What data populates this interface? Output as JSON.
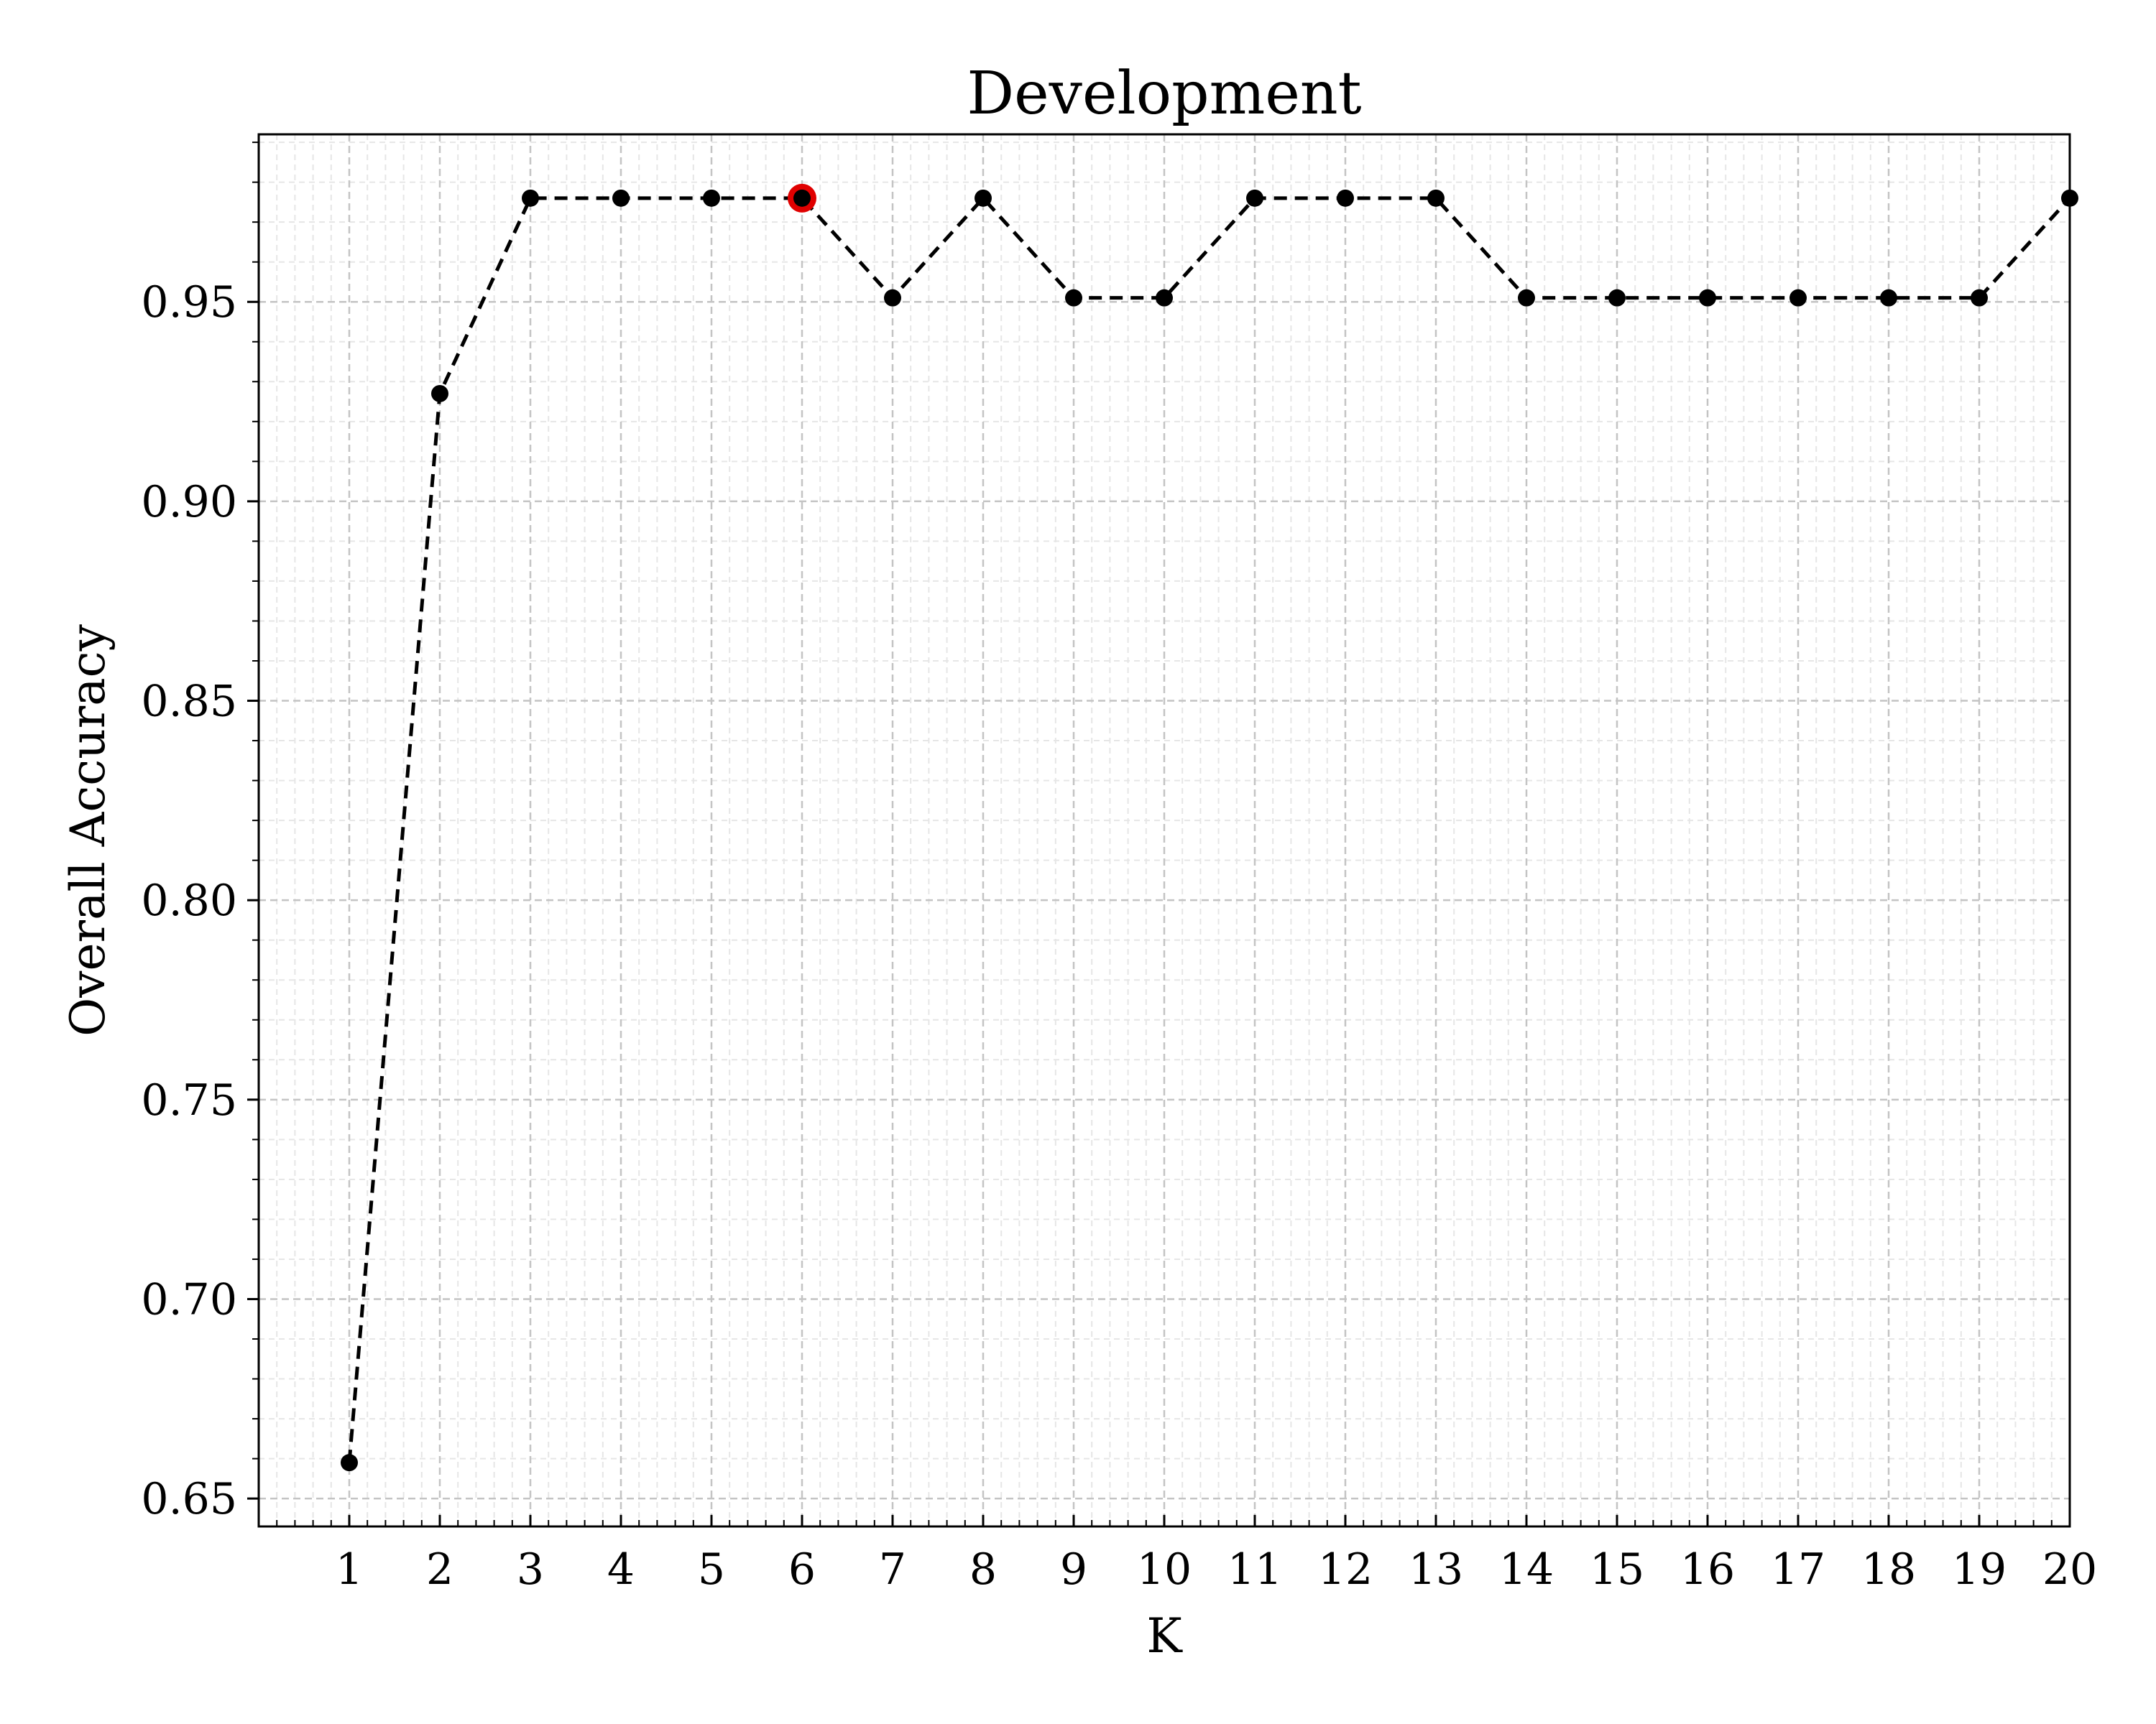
{
  "chart_data": {
    "type": "line",
    "title": "Development",
    "xlabel": "K",
    "ylabel": "Overall Accuracy",
    "x": [
      1,
      2,
      3,
      4,
      5,
      6,
      7,
      8,
      9,
      10,
      11,
      12,
      13,
      14,
      15,
      16,
      17,
      18,
      19,
      20
    ],
    "series": [
      {
        "values": [
          0.659,
          0.927,
          0.976,
          0.976,
          0.976,
          0.976,
          0.951,
          0.976,
          0.951,
          0.951,
          0.976,
          0.976,
          0.976,
          0.951,
          0.951,
          0.951,
          0.951,
          0.951,
          0.951,
          0.976
        ],
        "color": "#000000",
        "line_style": "dashed",
        "marker": "circle"
      }
    ],
    "highlight": {
      "x": 6,
      "y": 0.976,
      "color": "#e00000"
    },
    "xlim": [
      0,
      20
    ],
    "ylim": [
      0.643,
      0.992
    ],
    "x_ticks": [
      "1",
      "2",
      "3",
      "4",
      "5",
      "6",
      "7",
      "8",
      "9",
      "10",
      "11",
      "12",
      "13",
      "14",
      "15",
      "16",
      "17",
      "18",
      "19",
      "20"
    ],
    "y_ticks": [
      "0.65",
      "0.70",
      "0.75",
      "0.80",
      "0.85",
      "0.90",
      "0.95"
    ],
    "grid": true,
    "minor_grid": true,
    "legend": "none"
  }
}
